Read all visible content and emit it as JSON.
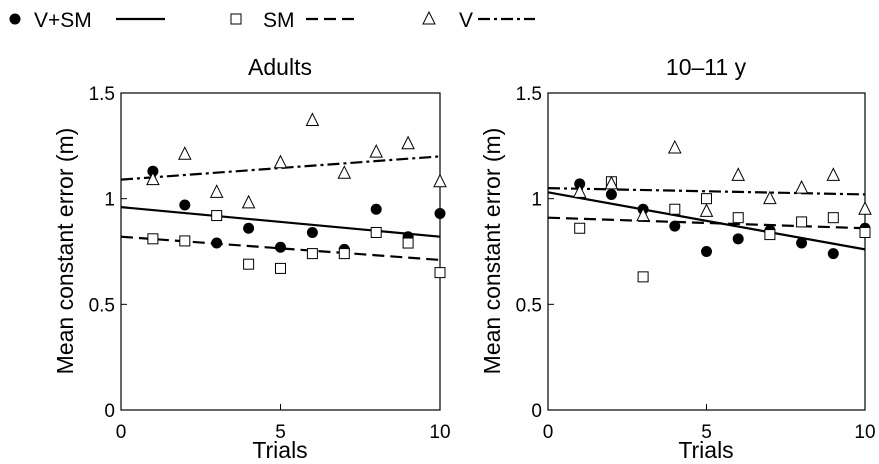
{
  "legend": {
    "items": [
      {
        "label": "V+SM",
        "marker": "filled-circle",
        "line": "solid"
      },
      {
        "label": "SM",
        "marker": "open-square",
        "line": "dashed"
      },
      {
        "label": "V",
        "marker": "open-triangle",
        "line": "dash-dot"
      }
    ]
  },
  "chart_data": [
    {
      "type": "scatter",
      "title": "Adults",
      "xlabel": "Trials",
      "ylabel": "Mean constant error (m)",
      "xlim": [
        0,
        10
      ],
      "ylim": [
        0,
        1.5
      ],
      "xticks": [
        "0",
        "5",
        "10"
      ],
      "yticks": [
        "0",
        "0.5",
        "1",
        "1.5"
      ],
      "legend_position": "top",
      "grid": false,
      "series": [
        {
          "name": "V+SM",
          "marker": "filled-circle",
          "x": [
            1,
            2,
            3,
            4,
            5,
            6,
            7,
            8,
            9,
            10
          ],
          "y": [
            1.13,
            0.97,
            0.79,
            0.86,
            0.77,
            0.84,
            0.76,
            0.95,
            0.82,
            0.93
          ],
          "trend": {
            "style": "solid",
            "x": [
              0,
              10
            ],
            "y": [
              0.96,
              0.82
            ]
          }
        },
        {
          "name": "SM",
          "marker": "open-square",
          "x": [
            1,
            2,
            3,
            4,
            5,
            6,
            7,
            8,
            9,
            10
          ],
          "y": [
            0.81,
            0.8,
            0.92,
            0.69,
            0.67,
            0.74,
            0.74,
            0.84,
            0.79,
            0.65
          ],
          "trend": {
            "style": "dashed",
            "x": [
              0,
              10
            ],
            "y": [
              0.82,
              0.71
            ]
          }
        },
        {
          "name": "V",
          "marker": "open-triangle",
          "x": [
            1,
            2,
            3,
            4,
            5,
            6,
            7,
            8,
            9,
            10
          ],
          "y": [
            1.09,
            1.21,
            1.03,
            0.98,
            1.17,
            1.37,
            1.12,
            1.22,
            1.26,
            1.08
          ],
          "trend": {
            "style": "dash-dot",
            "x": [
              0,
              10
            ],
            "y": [
              1.09,
              1.2
            ]
          }
        }
      ]
    },
    {
      "type": "scatter",
      "title": "10–11 y",
      "xlabel": "Trials",
      "ylabel": "Mean constant error (m)",
      "xlim": [
        0,
        10
      ],
      "ylim": [
        0,
        1.5
      ],
      "xticks": [
        "0",
        "5",
        "10"
      ],
      "yticks": [
        "0",
        "0.5",
        "1",
        "1.5"
      ],
      "legend_position": "top",
      "grid": false,
      "series": [
        {
          "name": "V+SM",
          "marker": "filled-circle",
          "x": [
            1,
            2,
            3,
            4,
            5,
            6,
            7,
            8,
            9,
            10
          ],
          "y": [
            1.07,
            1.02,
            0.95,
            0.87,
            0.75,
            0.81,
            0.85,
            0.79,
            0.74,
            0.86
          ],
          "trend": {
            "style": "solid",
            "x": [
              0,
              10
            ],
            "y": [
              1.03,
              0.76
            ]
          }
        },
        {
          "name": "SM",
          "marker": "open-square",
          "x": [
            1,
            2,
            3,
            4,
            5,
            6,
            7,
            8,
            9,
            10
          ],
          "y": [
            0.86,
            1.08,
            0.63,
            0.95,
            1.0,
            0.91,
            0.83,
            0.89,
            0.91,
            0.84
          ],
          "trend": {
            "style": "dashed",
            "x": [
              0,
              10
            ],
            "y": [
              0.91,
              0.86
            ]
          }
        },
        {
          "name": "V",
          "marker": "open-triangle",
          "x": [
            1,
            2,
            3,
            4,
            5,
            6,
            7,
            8,
            9,
            10
          ],
          "y": [
            1.03,
            1.07,
            0.92,
            1.24,
            0.94,
            1.11,
            1.0,
            1.05,
            1.11,
            0.95
          ],
          "trend": {
            "style": "dash-dot",
            "x": [
              0,
              10
            ],
            "y": [
              1.05,
              1.02
            ]
          }
        }
      ]
    }
  ]
}
